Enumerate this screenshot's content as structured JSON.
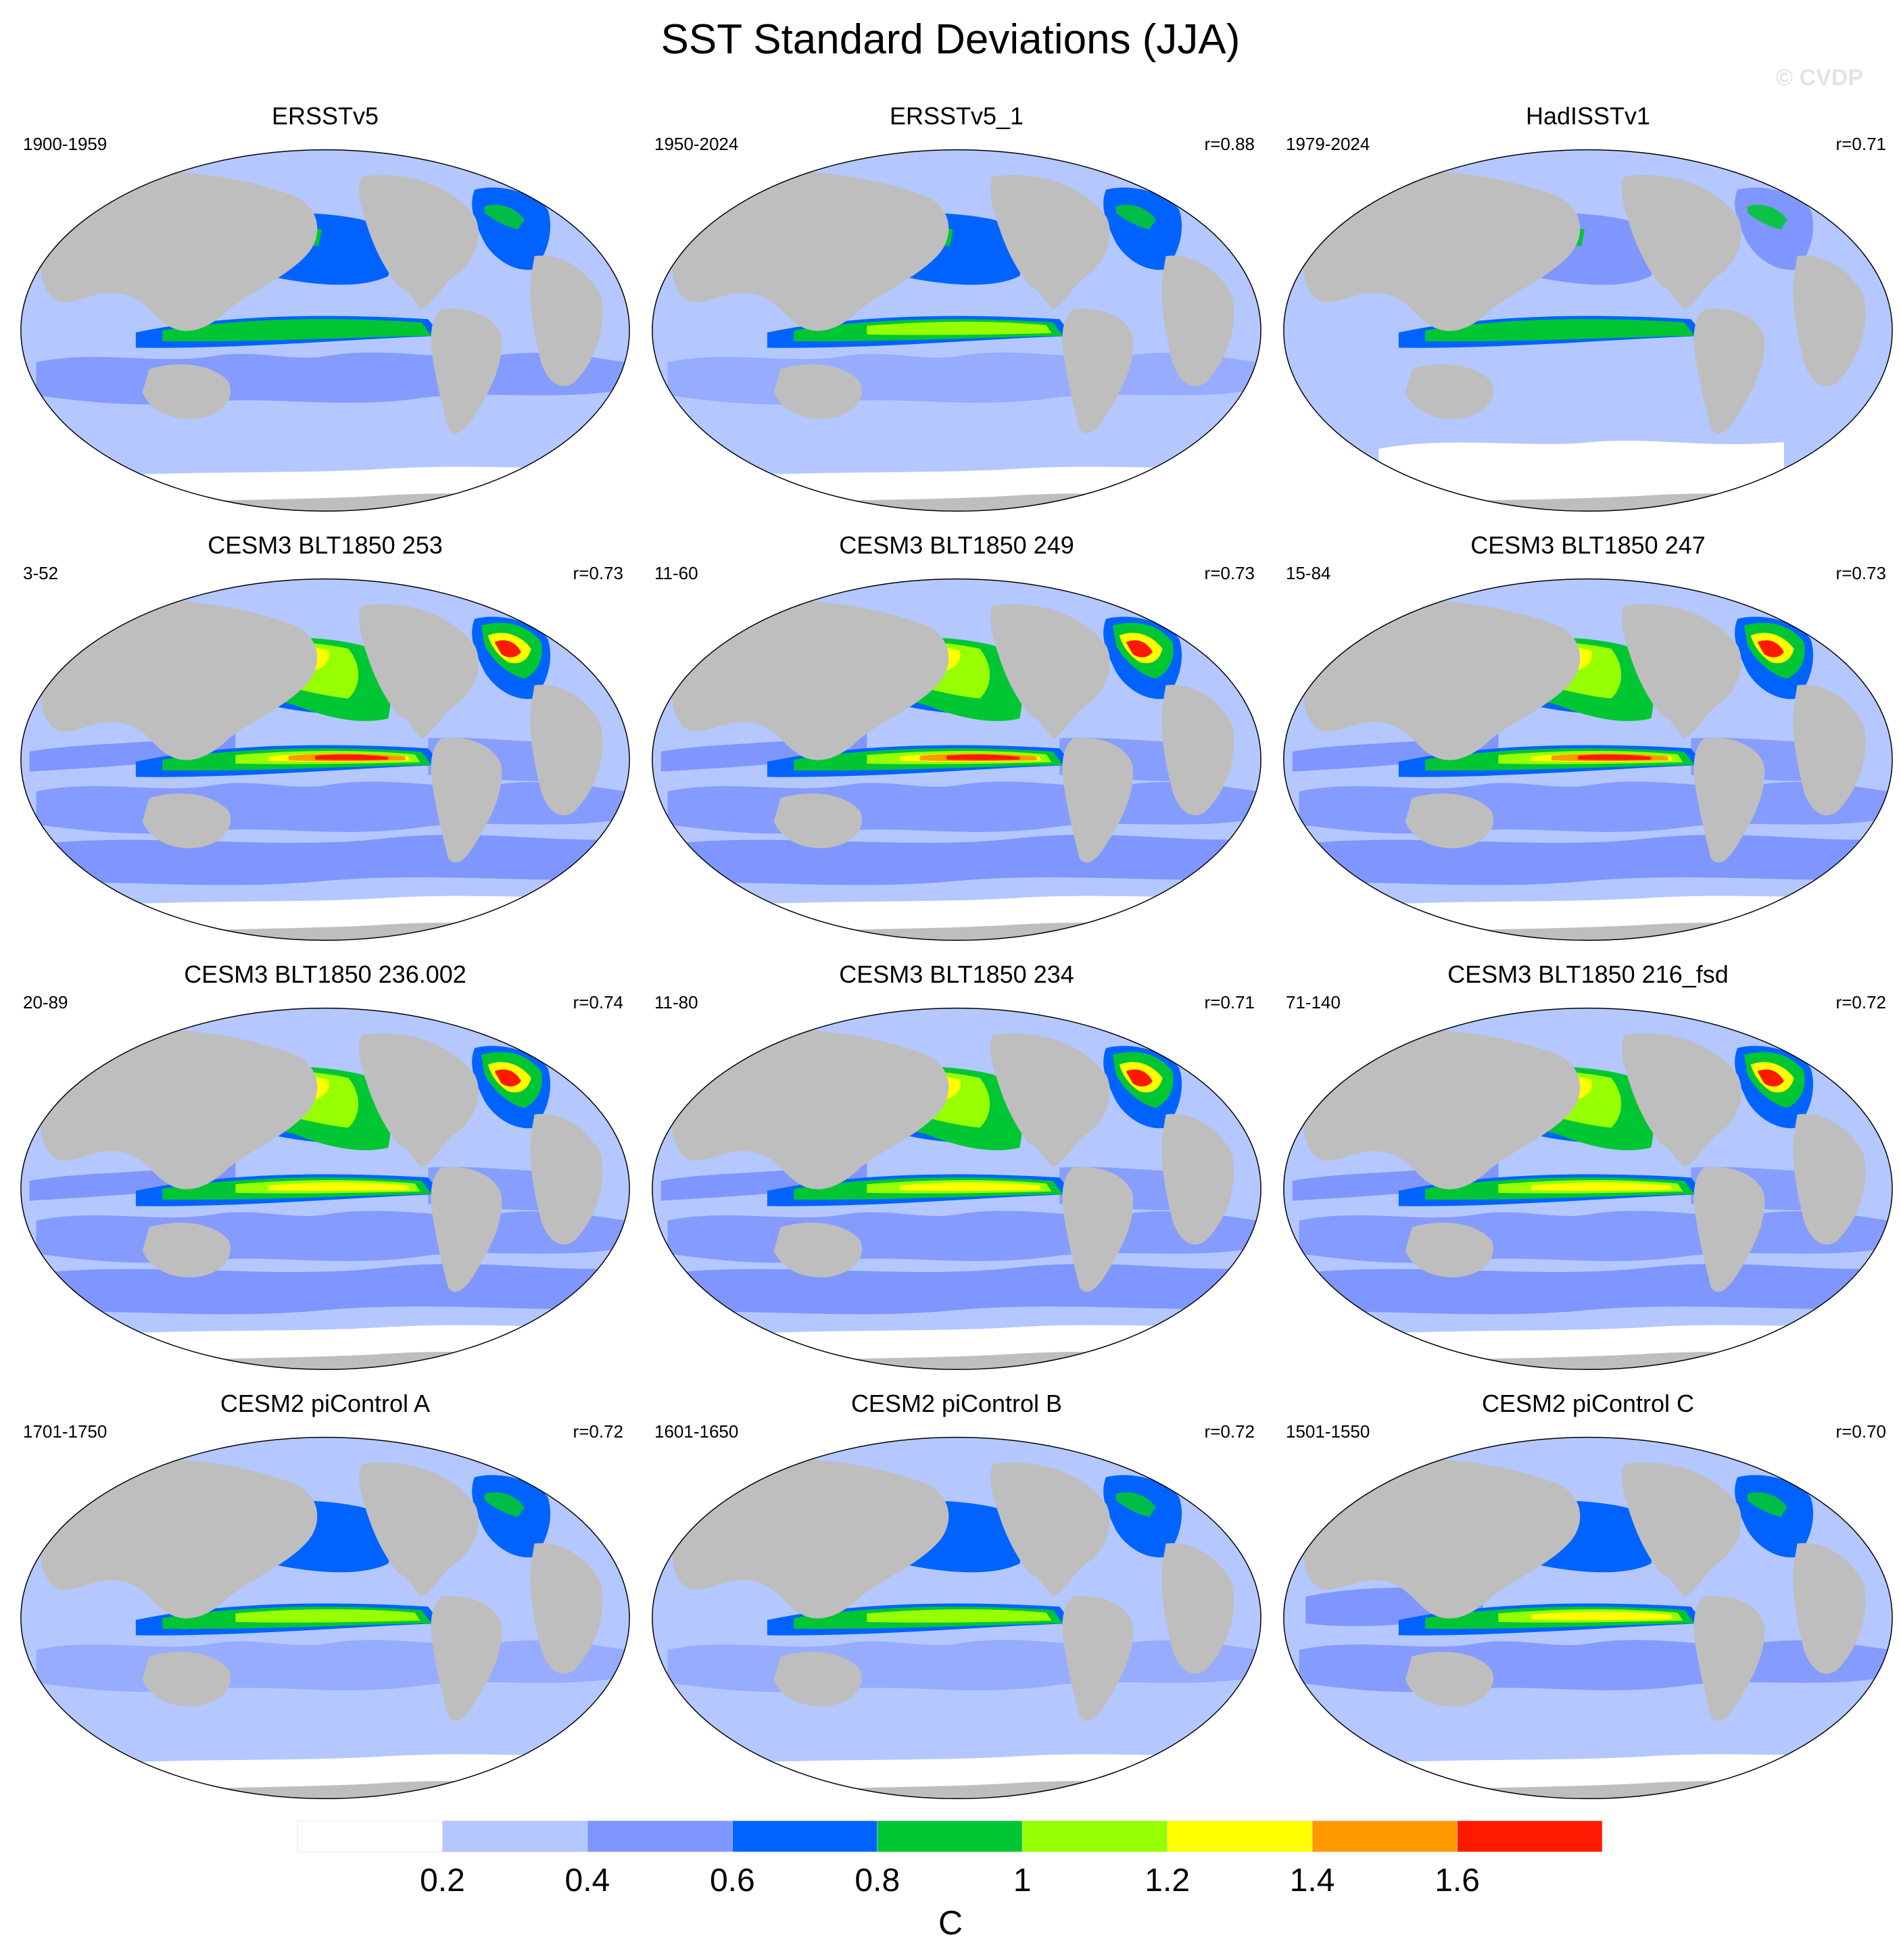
{
  "title": "SST Standard Deviations (JJA)",
  "watermark": "© CVDP",
  "panels": [
    {
      "title": "ERSSTv5",
      "period": "1900-1959",
      "r": "",
      "style": "obs1"
    },
    {
      "title": "ERSSTv5_1",
      "period": "1950-2024",
      "r": "r=0.88",
      "style": "obs2"
    },
    {
      "title": "HadISSTv1",
      "period": "1979-2024",
      "r": "r=0.71",
      "style": "obs3"
    },
    {
      "title": "CESM3 BLT1850 253",
      "period": "3-52",
      "r": "r=0.73",
      "style": "hot"
    },
    {
      "title": "CESM3 BLT1850 249",
      "period": "11-60",
      "r": "r=0.73",
      "style": "hot"
    },
    {
      "title": "CESM3 BLT1850 247",
      "period": "15-84",
      "r": "r=0.73",
      "style": "hot"
    },
    {
      "title": "CESM3 BLT1850 236.002",
      "period": "20-89",
      "r": "r=0.74",
      "style": "warm"
    },
    {
      "title": "CESM3 BLT1850 234",
      "period": "11-80",
      "r": "r=0.71",
      "style": "warm"
    },
    {
      "title": "CESM3 BLT1850 216_fsd",
      "period": "71-140",
      "r": "r=0.72",
      "style": "warm"
    },
    {
      "title": "CESM2 piControl A",
      "period": "1701-1750",
      "r": "r=0.72",
      "style": "ctrl"
    },
    {
      "title": "CESM2 piControl B",
      "period": "1601-1650",
      "r": "r=0.72",
      "style": "ctrl"
    },
    {
      "title": "CESM2 piControl C",
      "period": "1501-1550",
      "r": "r=0.70",
      "style": "ctrlC"
    }
  ],
  "colorbar": {
    "unit": "C",
    "tick_labels": [
      "0.2",
      "0.4",
      "0.6",
      "0.8",
      "1",
      "1.2",
      "1.4",
      "1.6"
    ],
    "colors": [
      "#ffffff",
      "#b4c8ff",
      "#7f96ff",
      "#0063ff",
      "#00c633",
      "#96ff00",
      "#ffff00",
      "#ff9900",
      "#ff1900"
    ]
  },
  "land_color": "#bebebe"
}
